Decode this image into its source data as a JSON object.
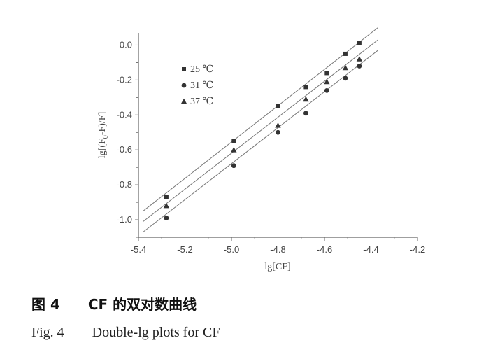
{
  "chart_data": {
    "type": "scatter",
    "xlabel": "lg[CF]",
    "ylabel": "lg[(F₀-F)/F]",
    "xlim": [
      -5.4,
      -4.2
    ],
    "ylim": [
      -1.1,
      0.07
    ],
    "xticks": [
      "-5.4",
      "-5.2",
      "-5.0",
      "-4.8",
      "-4.6",
      "-4.4",
      "-4.2"
    ],
    "yticks": [
      "0.0",
      "-0.2",
      "-0.4",
      "-0.6",
      "-0.8",
      "-1.0"
    ],
    "grid": false,
    "legend_position": "top-left",
    "x": [
      -5.28,
      -4.99,
      -4.8,
      -4.68,
      -4.59,
      -4.51,
      -4.45
    ],
    "series": [
      {
        "name": "25 ℃",
        "marker": "square",
        "values": [
          -0.87,
          -0.55,
          -0.35,
          -0.24,
          -0.16,
          -0.05,
          0.01
        ],
        "fit": {
          "x": [
            -5.38,
            -4.37
          ],
          "y": [
            -0.95,
            0.1
          ]
        }
      },
      {
        "name": "31 ℃",
        "marker": "circle",
        "values": [
          -0.99,
          -0.69,
          -0.5,
          -0.39,
          -0.26,
          -0.19,
          -0.12
        ],
        "fit": {
          "x": [
            -5.38,
            -4.37
          ],
          "y": [
            -1.07,
            -0.03
          ]
        }
      },
      {
        "name": "37 ℃",
        "marker": "triangle",
        "values": [
          -0.92,
          -0.6,
          -0.46,
          -0.31,
          -0.21,
          -0.13,
          -0.08
        ],
        "fit": {
          "x": [
            -5.38,
            -4.37
          ],
          "y": [
            -1.01,
            0.03
          ]
        }
      }
    ]
  },
  "caption": {
    "zh": "图 4　　CF 的双对数曲线",
    "en": "Fig. 4　　Double-lg plots for CF"
  }
}
